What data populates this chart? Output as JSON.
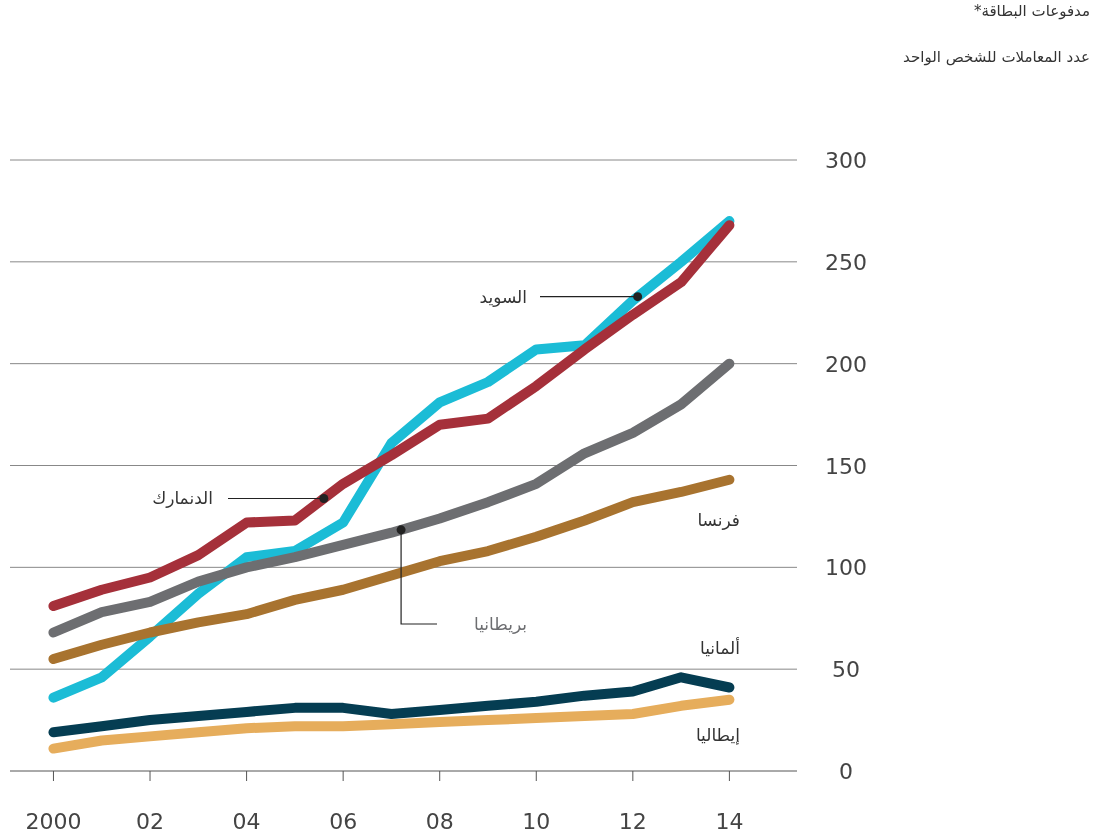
{
  "chart_data": {
    "type": "line",
    "title": "مدفوعات البطاقة*",
    "subtitle": "عدد المعاملات للشخص الواحد",
    "x": [
      2000,
      2001,
      2002,
      2003,
      2004,
      2005,
      2006,
      2007,
      2008,
      2009,
      2010,
      2011,
      2012,
      2013,
      2014
    ],
    "series": [
      {
        "name": "السويد",
        "color": "#1bbcd6",
        "values": [
          36,
          46,
          66,
          87,
          105,
          108,
          122,
          161,
          181,
          191,
          207,
          209,
          231,
          250,
          270
        ]
      },
      {
        "name": "الدنمارك",
        "color": "#a5303a",
        "values": [
          81,
          89,
          95,
          106,
          122,
          123,
          141,
          155,
          170,
          173,
          189,
          207,
          224,
          240,
          268
        ]
      },
      {
        "name": "بريطانيا",
        "color": "#6d6e71",
        "values": [
          68,
          78,
          83,
          93,
          100,
          105,
          111,
          117,
          124,
          132,
          141,
          156,
          166,
          180,
          200
        ]
      },
      {
        "name": "فرنسا",
        "color": "#a8732f",
        "values": [
          55,
          62,
          68,
          73,
          77,
          84,
          89,
          96,
          103,
          108,
          115,
          123,
          132,
          137,
          143
        ]
      },
      {
        "name": "ألمانيا",
        "color": "#053d52",
        "values": [
          19,
          22,
          25,
          27,
          29,
          31,
          31,
          28,
          30,
          32,
          34,
          37,
          39,
          46,
          41
        ]
      },
      {
        "name": "إيطاليا",
        "color": "#e6ad5c",
        "values": [
          11,
          15,
          17,
          19,
          21,
          22,
          22,
          23,
          24,
          25,
          26,
          27,
          28,
          32,
          35
        ]
      }
    ],
    "xlim": [
      1999.1,
      2015.4
    ],
    "ylim": [
      0,
      300
    ],
    "xticks": [
      2000,
      {
        "value": 2002,
        "label": "02"
      },
      {
        "value": 2004,
        "label": "04"
      },
      {
        "value": 2006,
        "label": "06"
      },
      {
        "value": 2008,
        "label": "08"
      },
      {
        "value": 2010,
        "label": "10"
      },
      {
        "value": 2012,
        "label": "12"
      },
      {
        "value": 2014,
        "label": "14"
      }
    ],
    "yticks": [
      0,
      50,
      100,
      150,
      200,
      250,
      300
    ],
    "grid": "y",
    "legend": false,
    "marker": "none",
    "line_style": "solid"
  }
}
